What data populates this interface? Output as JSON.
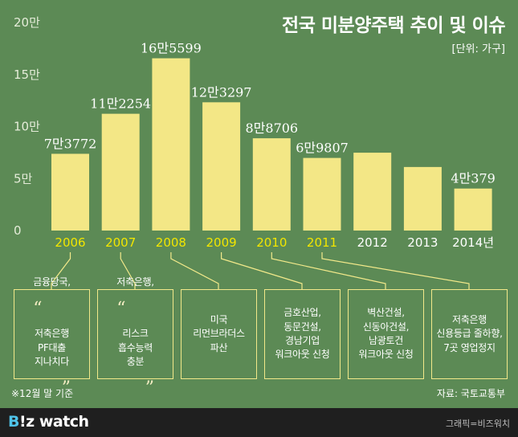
{
  "header": {
    "title": "전국 미분양주택 추이 및 이슈",
    "unit": "[단위: 가구]"
  },
  "chart_data": {
    "type": "bar",
    "categories": [
      "2006",
      "2007",
      "2008",
      "2009",
      "2010",
      "2011",
      "2012",
      "2013",
      "2014년"
    ],
    "highlighted_categories": [
      "2006",
      "2007",
      "2008",
      "2009",
      "2010",
      "2011"
    ],
    "values": [
      73772,
      112254,
      165599,
      123297,
      88706,
      69807,
      74835,
      61091,
      40379
    ],
    "data_labels": [
      "7만3772",
      "11만2254",
      "16만5599",
      "12만3297",
      "8만8706",
      "6만9807",
      "",
      "",
      "4만379"
    ],
    "ylim": [
      0,
      200000
    ],
    "yticks": [
      0,
      50000,
      100000,
      150000,
      200000
    ],
    "ytick_labels": [
      "0",
      "5만",
      "10만",
      "15만",
      "20만"
    ],
    "grid": false,
    "colors": {
      "bar": "#f3e786",
      "highlight_label": "#f2e600",
      "default_label": "#ffffff",
      "tick": "#e5ecd9",
      "connector": "#f2e98a",
      "background": "#5c8a55"
    }
  },
  "issues": [
    {
      "year": "2006",
      "open_quote": "“",
      "lines_top": "금융당국,",
      "lines_quote": "저축은행\nPF대출\n지나치다",
      "close_quote": "”"
    },
    {
      "year": "2007",
      "open_quote": "“",
      "lines_top": "저축은행,",
      "lines_quote": "리스크\n흡수능력\n충분",
      "close_quote": "”"
    },
    {
      "year": "2008",
      "text": "미국\n리먼브라더스\n파산"
    },
    {
      "year": "2009",
      "text": "금호산업,\n동문건설,\n경남기업\n워크아웃 신청"
    },
    {
      "year": "2010",
      "text": "벽산건설,\n신동아건설,\n남광토건\n워크아웃 신청"
    },
    {
      "year": "2011",
      "text": "저축은행\n신용등급 줄하향,\n7곳 영업정지"
    }
  ],
  "footnote": "※12월 말 기준",
  "source": "자료: 국토교통부",
  "brand": {
    "logo_b": "B",
    "logo_rest": "!z watch",
    "credit": "그래픽=비즈워치"
  }
}
